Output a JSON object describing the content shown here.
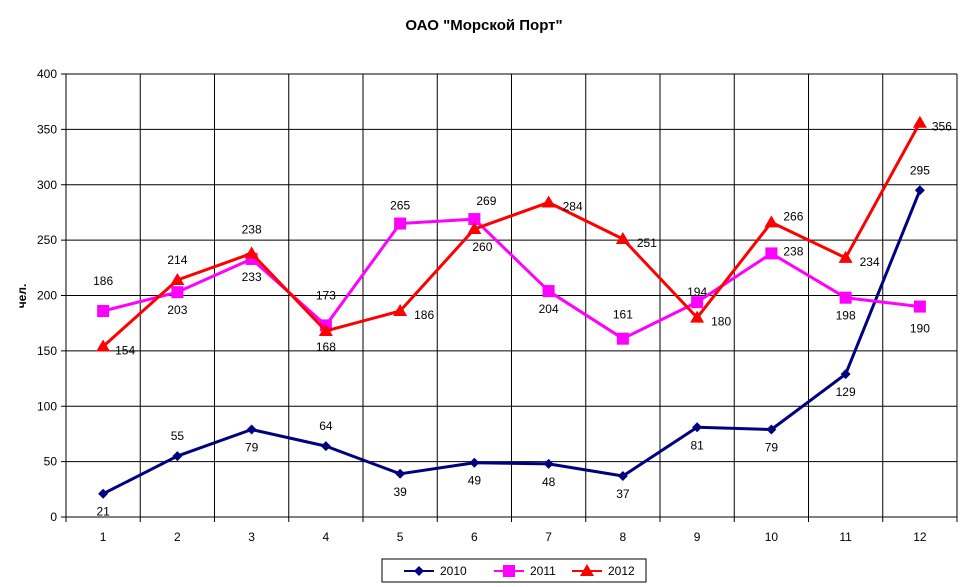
{
  "chart_data": {
    "type": "line",
    "title": "ОАО \"Морской Порт\"",
    "xlabel": "",
    "ylabel": "чел.",
    "categories": [
      "1",
      "2",
      "3",
      "4",
      "5",
      "6",
      "7",
      "8",
      "9",
      "10",
      "11",
      "12"
    ],
    "ylim": [
      0,
      400
    ],
    "yticks": [
      0,
      50,
      100,
      150,
      200,
      250,
      300,
      350,
      400
    ],
    "grid": true,
    "legend_position": "bottom",
    "series": [
      {
        "name": "2010",
        "color": "#000080",
        "marker": "diamond",
        "values": [
          21,
          55,
          79,
          64,
          39,
          49,
          48,
          37,
          81,
          79,
          129,
          295
        ]
      },
      {
        "name": "2011",
        "color": "#FF00FF",
        "marker": "square",
        "values": [
          186,
          203,
          233,
          173,
          265,
          269,
          204,
          161,
          194,
          238,
          198,
          190
        ]
      },
      {
        "name": "2012",
        "color": "#FF0000",
        "marker": "triangle",
        "values": [
          154,
          214,
          238,
          168,
          186,
          260,
          284,
          251,
          180,
          266,
          234,
          356
        ]
      }
    ],
    "data_labels": {
      "2010": [
        {
          "i": 0,
          "dx": 0,
          "dy": 18
        },
        {
          "i": 1,
          "dx": 0,
          "dy": -20
        },
        {
          "i": 2,
          "dx": 0,
          "dy": 18
        },
        {
          "i": 3,
          "dx": 0,
          "dy": -20
        },
        {
          "i": 4,
          "dx": 0,
          "dy": 18
        },
        {
          "i": 5,
          "dx": 0,
          "dy": 18
        },
        {
          "i": 6,
          "dx": 0,
          "dy": 18
        },
        {
          "i": 7,
          "dx": 0,
          "dy": 18
        },
        {
          "i": 8,
          "dx": 0,
          "dy": 18
        },
        {
          "i": 9,
          "dx": 0,
          "dy": 18
        },
        {
          "i": 10,
          "dx": 0,
          "dy": 18
        },
        {
          "i": 11,
          "dx": 0,
          "dy": -20
        }
      ],
      "2011": [
        {
          "i": 0,
          "dx": 0,
          "dy": -30
        },
        {
          "i": 1,
          "dx": 0,
          "dy": 18
        },
        {
          "i": 2,
          "dx": 0,
          "dy": 18
        },
        {
          "i": 3,
          "dx": 0,
          "dy": -30
        },
        {
          "i": 4,
          "dx": 0,
          "dy": -18
        },
        {
          "i": 5,
          "dx": 12,
          "dy": -18
        },
        {
          "i": 6,
          "dx": 0,
          "dy": 18
        },
        {
          "i": 7,
          "dx": 0,
          "dy": -24
        },
        {
          "i": 8,
          "dx": 0,
          "dy": -10
        },
        {
          "i": 9,
          "dx": 22,
          "dy": -2
        },
        {
          "i": 10,
          "dx": 0,
          "dy": 18
        },
        {
          "i": 11,
          "dx": 0,
          "dy": 22
        }
      ],
      "2012": [
        {
          "i": 0,
          "dx": 22,
          "dy": 4
        },
        {
          "i": 1,
          "dx": 0,
          "dy": -20
        },
        {
          "i": 2,
          "dx": 0,
          "dy": -24
        },
        {
          "i": 3,
          "dx": 0,
          "dy": 16
        },
        {
          "i": 4,
          "dx": 24,
          "dy": 4
        },
        {
          "i": 5,
          "dx": 8,
          "dy": 18
        },
        {
          "i": 6,
          "dx": 24,
          "dy": 4
        },
        {
          "i": 7,
          "dx": 24,
          "dy": 4
        },
        {
          "i": 8,
          "dx": 24,
          "dy": 4
        },
        {
          "i": 9,
          "dx": 22,
          "dy": -6
        },
        {
          "i": 10,
          "dx": 24,
          "dy": 4
        },
        {
          "i": 11,
          "dx": 22,
          "dy": 4
        }
      ]
    }
  }
}
